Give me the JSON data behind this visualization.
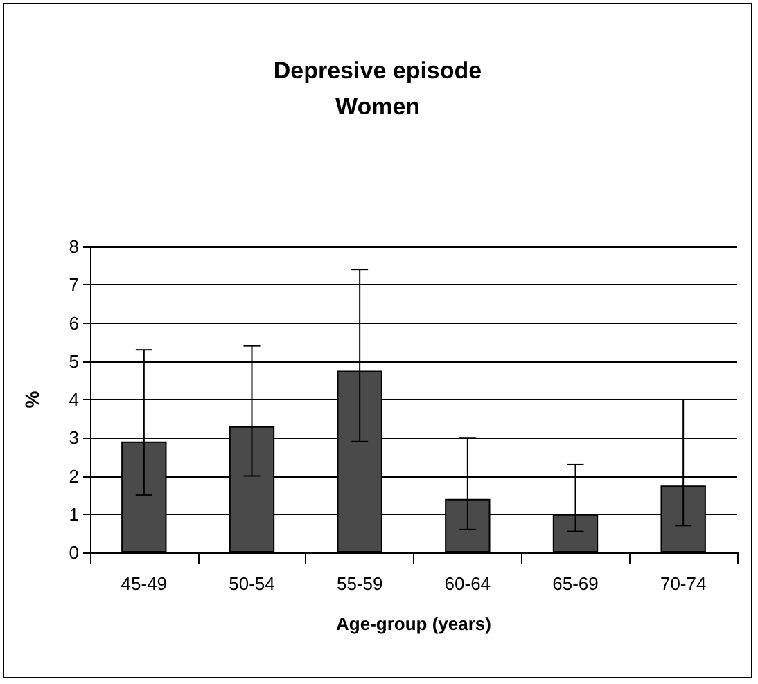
{
  "chart_data": {
    "type": "bar",
    "title": "Depresive episode\nWomen",
    "xlabel": "Age-group (years)",
    "ylabel": "%",
    "categories": [
      "45-49",
      "50-54",
      "55-59",
      "60-64",
      "65-69",
      "70-74"
    ],
    "values": [
      2.9,
      3.3,
      4.75,
      1.4,
      1.0,
      1.75
    ],
    "errors": [
      [
        1.5,
        5.3
      ],
      [
        2.0,
        5.4
      ],
      [
        2.9,
        7.4
      ],
      [
        0.6,
        3.0
      ],
      [
        0.55,
        2.3
      ],
      [
        0.7,
        4.0
      ]
    ],
    "color": "#4a4a4a",
    "ylim": [
      0,
      8
    ],
    "yticks": [
      0,
      1,
      2,
      3,
      4,
      5,
      6,
      7,
      8
    ],
    "grid": "y"
  }
}
